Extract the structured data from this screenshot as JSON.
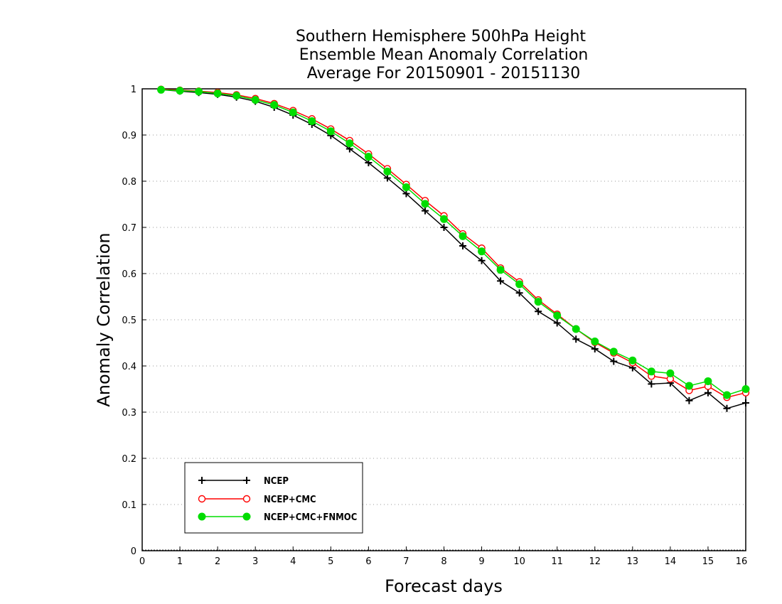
{
  "chart_data": {
    "type": "line",
    "title_lines": [
      "Southern Hemisphere 500hPa Height",
      "Ensemble Mean Anomaly Correlation",
      "Average For 20150901 - 20151130"
    ],
    "xlabel": "Forecast days",
    "ylabel": "Anomaly Correlation",
    "xlim": [
      0,
      16
    ],
    "ylim": [
      0,
      1
    ],
    "x_ticks": [
      0,
      1,
      2,
      3,
      4,
      5,
      6,
      7,
      8,
      9,
      10,
      11,
      12,
      13,
      14,
      15,
      16
    ],
    "y_ticks": [
      0,
      0.1,
      0.2,
      0.3,
      0.4,
      0.5,
      0.6,
      0.7,
      0.8,
      0.9,
      1
    ],
    "y_tick_labels": [
      "0",
      "0.1",
      "0.2",
      "0.3",
      "0.4",
      "0.5",
      "0.6",
      "0.7",
      "0.8",
      "0.9",
      "1"
    ],
    "grid": "horizontal dotted",
    "legend_position": "bottom-left",
    "x": [
      0.5,
      1,
      1.5,
      2,
      2.5,
      3,
      3.5,
      4,
      4.5,
      5,
      5.5,
      6,
      6.5,
      7,
      7.5,
      8,
      8.5,
      9,
      9.5,
      10,
      10.5,
      11,
      11.5,
      12,
      12.5,
      13,
      13.5,
      14,
      14.5,
      15,
      15.5,
      16
    ],
    "series": [
      {
        "name": "NCEP",
        "color": "#000000",
        "marker": "plus",
        "values": [
          0.998,
          0.995,
          0.992,
          0.988,
          0.982,
          0.973,
          0.96,
          0.943,
          0.923,
          0.899,
          0.87,
          0.84,
          0.807,
          0.773,
          0.736,
          0.7,
          0.66,
          0.628,
          0.584,
          0.558,
          0.518,
          0.493,
          0.458,
          0.437,
          0.41,
          0.396,
          0.361,
          0.363,
          0.325,
          0.342,
          0.308,
          0.32
        ]
      },
      {
        "name": "NCEP+CMC",
        "color": "#ff0000",
        "marker": "open-circle",
        "values": [
          0.999,
          0.997,
          0.995,
          0.992,
          0.987,
          0.979,
          0.968,
          0.953,
          0.935,
          0.913,
          0.888,
          0.859,
          0.827,
          0.793,
          0.758,
          0.725,
          0.686,
          0.655,
          0.612,
          0.582,
          0.543,
          0.512,
          0.48,
          0.451,
          0.428,
          0.407,
          0.378,
          0.372,
          0.347,
          0.356,
          0.332,
          0.342
        ]
      },
      {
        "name": "NCEP+CMC+FNMOC",
        "color": "#00dd00",
        "marker": "filled-circle",
        "values": [
          0.998,
          0.996,
          0.994,
          0.99,
          0.985,
          0.976,
          0.965,
          0.949,
          0.93,
          0.908,
          0.882,
          0.853,
          0.821,
          0.787,
          0.751,
          0.718,
          0.681,
          0.648,
          0.608,
          0.577,
          0.539,
          0.509,
          0.48,
          0.453,
          0.431,
          0.412,
          0.388,
          0.384,
          0.357,
          0.367,
          0.337,
          0.35
        ]
      }
    ]
  }
}
